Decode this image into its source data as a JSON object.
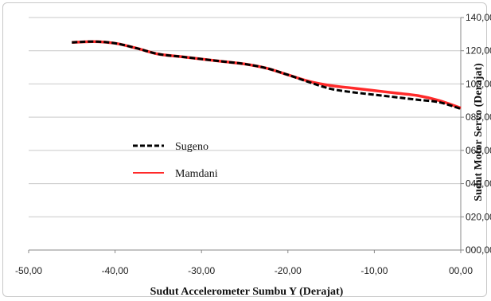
{
  "chart_data": {
    "type": "line",
    "xlabel": "Sudut Accelerometer Sumbu Y (Derajat)",
    "ylabel": "Sudut Motor Servo (Derajat)",
    "xlim": [
      -50,
      0
    ],
    "ylim": [
      0,
      140
    ],
    "xticks": [
      "-50,00",
      "-40,00",
      "-30,00",
      "-20,00",
      "-10,00",
      "00,00"
    ],
    "yticks": [
      "000,00",
      "020,00",
      "040,00",
      "060,00",
      "080,00",
      "100,00",
      "120,00",
      "140,00"
    ],
    "grid": "horizontal",
    "legend_position": "left-center",
    "series": [
      {
        "name": "Sugeno",
        "color": "#000000",
        "style": "dashed",
        "x": [
          -45,
          -42.5,
          -40,
          -37.5,
          -35,
          -32.5,
          -30,
          -27.5,
          -25,
          -22.5,
          -20,
          -17.5,
          -15,
          -12.5,
          -10,
          -7.5,
          -5,
          -2.5,
          0
        ],
        "y": [
          125,
          125.5,
          124.5,
          121.5,
          118,
          116.5,
          115,
          113.5,
          112,
          109.5,
          105.5,
          101,
          97,
          95,
          93.5,
          92,
          90.5,
          89,
          85
        ]
      },
      {
        "name": "Mamdani",
        "color": "#ff2a2a",
        "style": "solid",
        "x": [
          -45,
          -42.5,
          -40,
          -37.5,
          -35,
          -32.5,
          -30,
          -27.5,
          -25,
          -22.5,
          -20,
          -17.5,
          -15,
          -12.5,
          -10,
          -7.5,
          -5,
          -2.5,
          0
        ],
        "y": [
          125,
          125.5,
          124.5,
          121.5,
          118,
          116.5,
          115,
          113.5,
          112,
          109.5,
          105.5,
          101.5,
          99,
          97.5,
          96,
          94.5,
          93,
          90,
          85.5
        ]
      }
    ]
  }
}
